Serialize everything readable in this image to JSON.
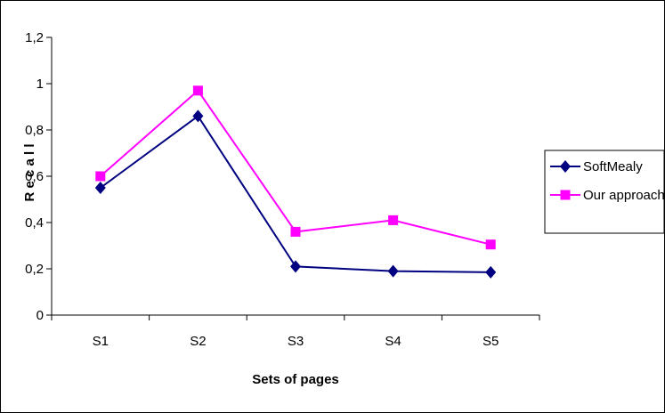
{
  "chart_data": {
    "type": "line",
    "title": "",
    "xlabel": "Sets of pages",
    "ylabel": "R e c a l l",
    "categories": [
      "S1",
      "S2",
      "S3",
      "S4",
      "S5"
    ],
    "y_ticks": [
      "0",
      "0,2",
      "0,4",
      "0,6",
      "0,8",
      "1",
      "1,2"
    ],
    "ylim": [
      0,
      1.2
    ],
    "grid": false,
    "legend_position": "right",
    "series": [
      {
        "name": "SoftMealy",
        "values": [
          0.55,
          0.86,
          0.21,
          0.19,
          0.185
        ],
        "color": "#000080",
        "marker": "diamond"
      },
      {
        "name": "Our approach",
        "values": [
          0.6,
          0.97,
          0.36,
          0.41,
          0.305
        ],
        "color": "#ff00ff",
        "marker": "square"
      }
    ]
  }
}
